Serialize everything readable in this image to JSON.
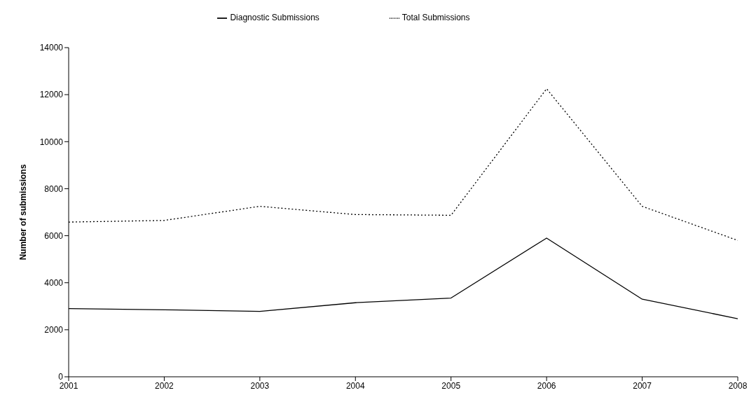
{
  "chart_data": {
    "type": "line",
    "ylabel": "Number of submissions",
    "x": [
      2001,
      2002,
      2003,
      2004,
      2005,
      2006,
      2007,
      2008
    ],
    "xlim": [
      2001,
      2008
    ],
    "xticks": [
      2001,
      2002,
      2003,
      2004,
      2005,
      2006,
      2007,
      2008
    ],
    "ylim": [
      0,
      14000
    ],
    "yticks": [
      0,
      2000,
      4000,
      6000,
      8000,
      10000,
      12000,
      14000
    ],
    "grid": false,
    "legend": "top",
    "marker": "none",
    "series": [
      {
        "name": "Total Submissions",
        "color": "#000000",
        "line_style": "dotted",
        "values": [
          6580,
          6650,
          7250,
          6900,
          6870,
          12250,
          7250,
          5800
        ]
      },
      {
        "name": "Diagnostic Submissions",
        "color": "#000000",
        "line_style": "solid",
        "values": [
          2900,
          2850,
          2780,
          3150,
          3350,
          5900,
          3300,
          2470
        ]
      }
    ]
  }
}
